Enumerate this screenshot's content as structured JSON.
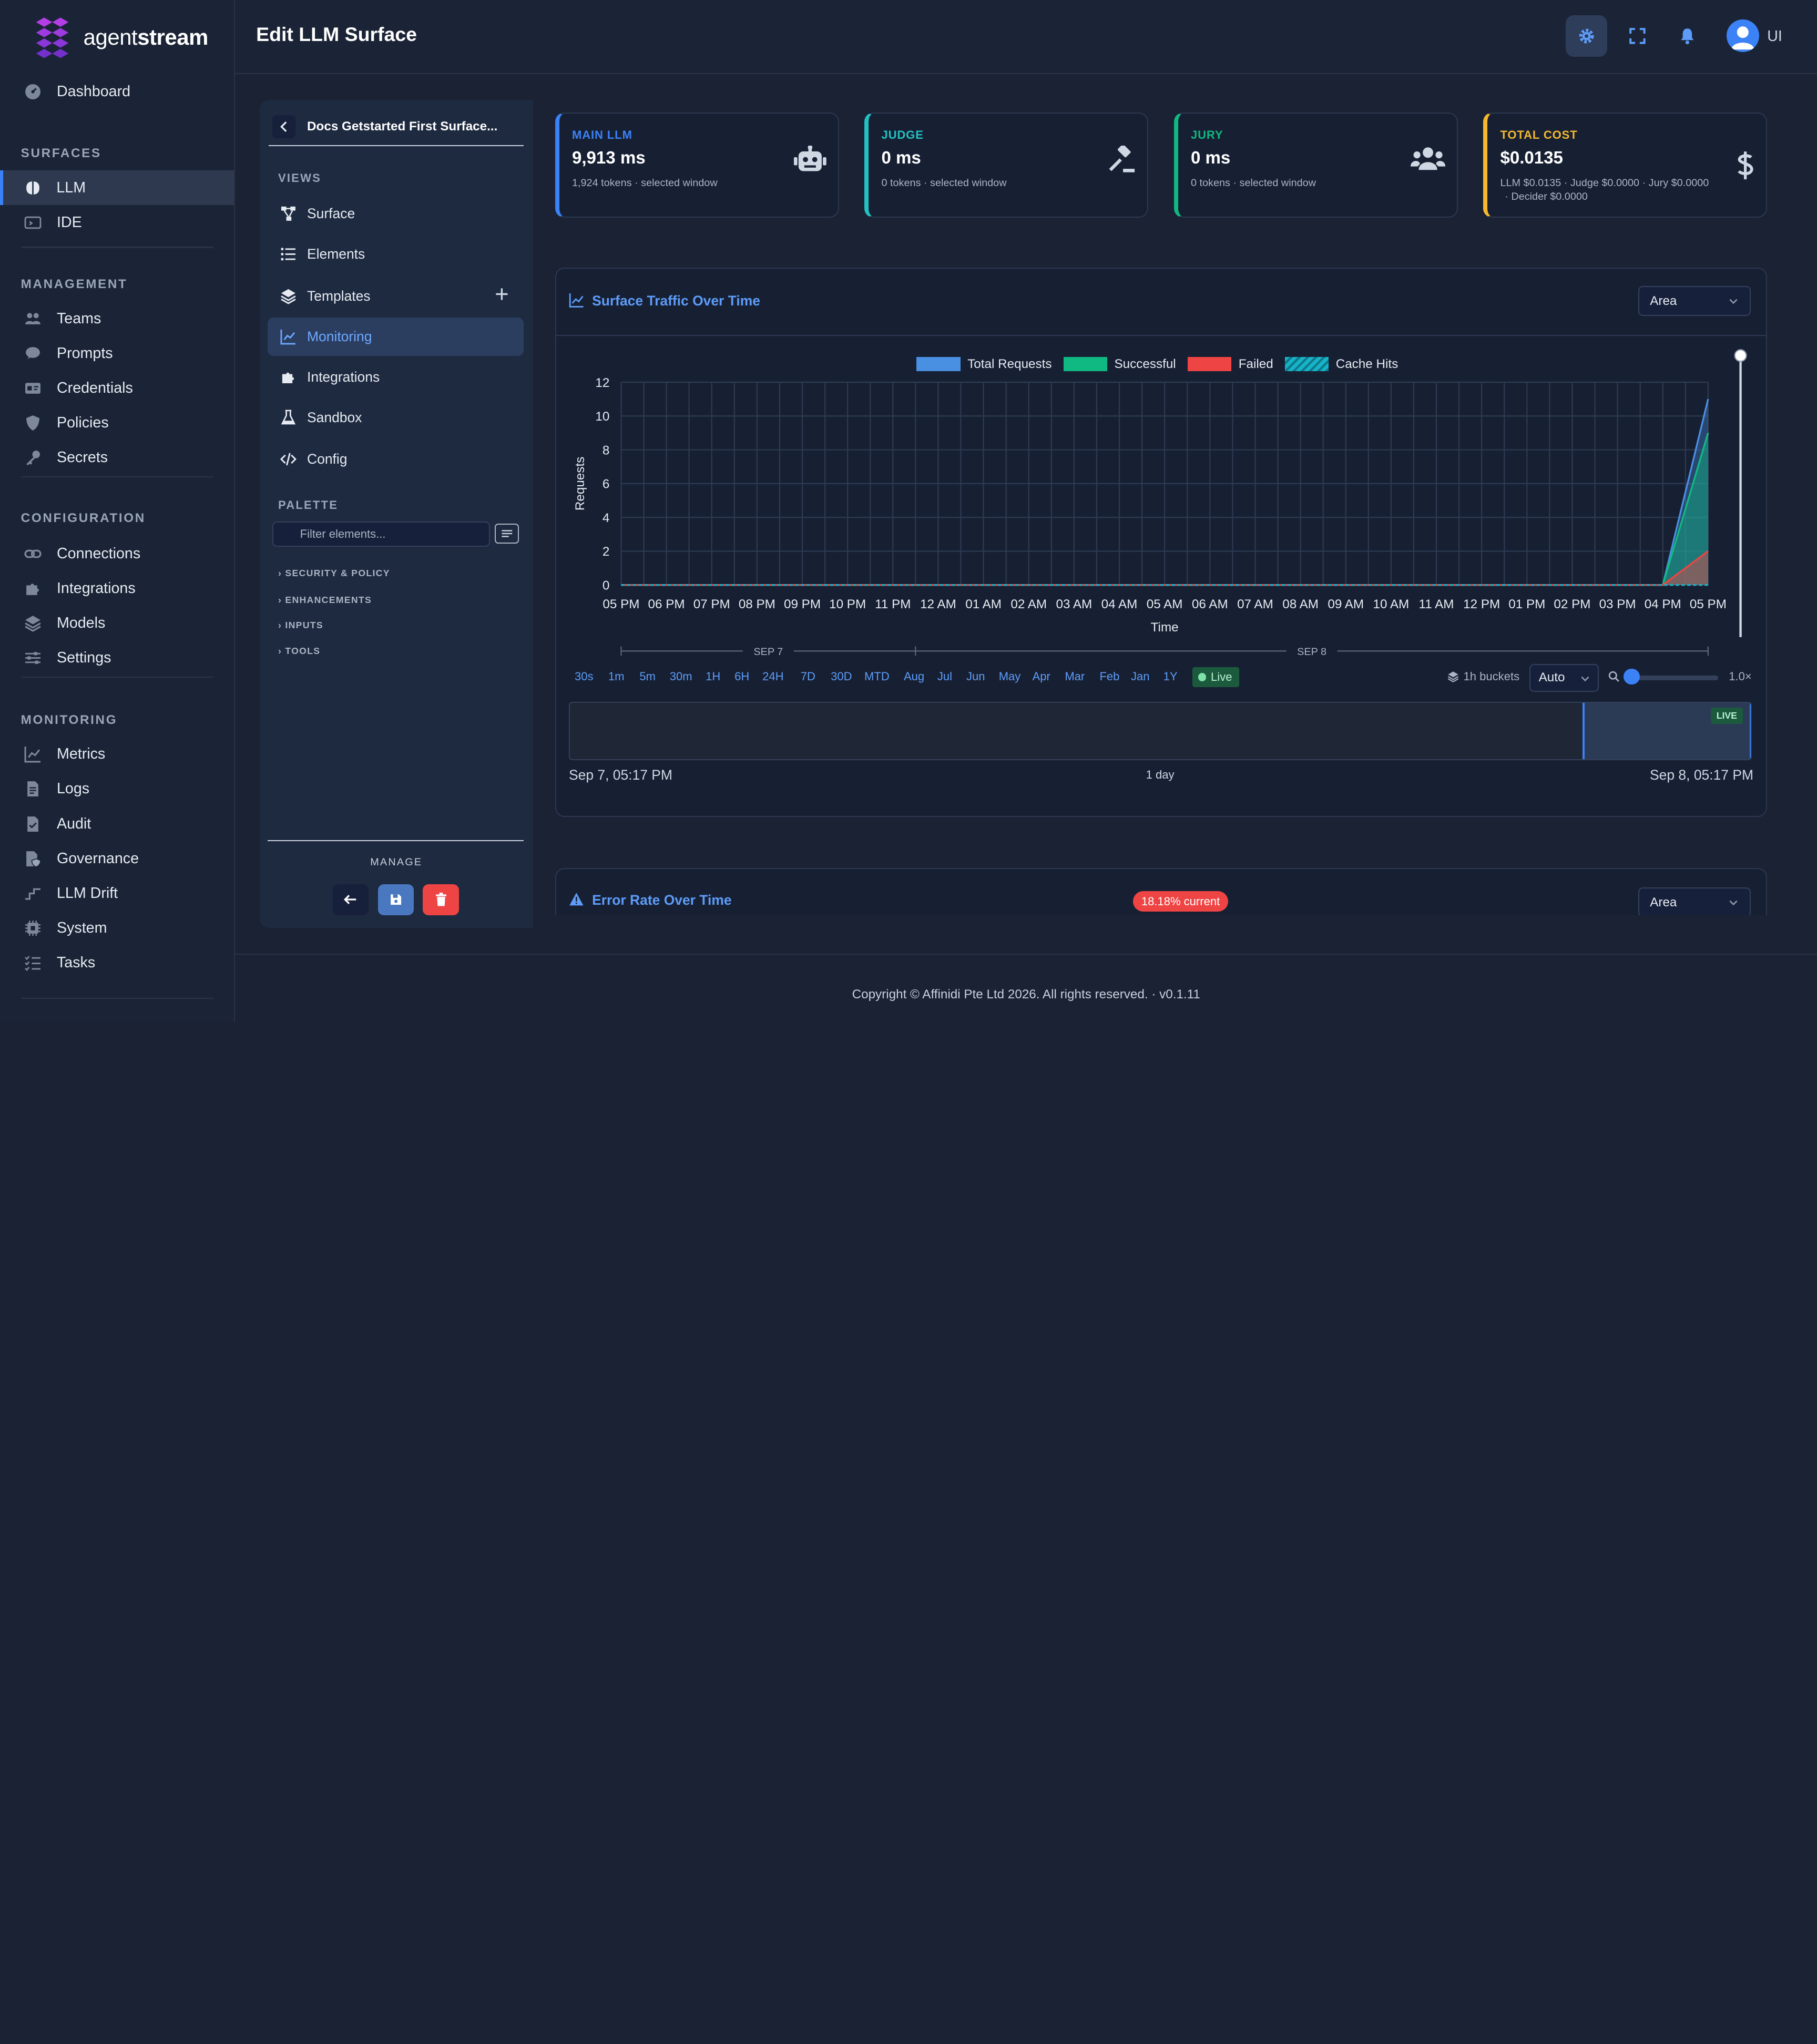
{
  "brand": {
    "name_light": "agent",
    "name_bold": "stream"
  },
  "header": {
    "title": "Edit LLM Surface",
    "user_initials": "UI"
  },
  "sidebar": {
    "dashboard": "Dashboard",
    "sections": {
      "surfaces": "SURFACES",
      "management": "MANAGEMENT",
      "configuration": "CONFIGURATION",
      "monitoring": "MONITORING"
    },
    "surfaces": [
      "LLM",
      "IDE"
    ],
    "management": [
      "Teams",
      "Prompts",
      "Credentials",
      "Policies",
      "Secrets"
    ],
    "configuration": [
      "Connections",
      "Integrations",
      "Models",
      "Settings"
    ],
    "monitoring": [
      "Metrics",
      "Logs",
      "Audit",
      "Governance",
      "LLM Drift",
      "System",
      "Tasks"
    ]
  },
  "surface_panel": {
    "name": "Docs Getstarted First Surface...",
    "views_label": "VIEWS",
    "views": [
      "Surface",
      "Elements",
      "Templates",
      "Monitoring",
      "Integrations",
      "Sandbox",
      "Config"
    ],
    "palette_label": "PALETTE",
    "filter_placeholder": "Filter elements...",
    "groups": [
      "SECURITY & POLICY",
      "ENHANCEMENTS",
      "INPUTS",
      "TOOLS"
    ],
    "manage_label": "MANAGE"
  },
  "cards": [
    {
      "title": "MAIN LLM",
      "value": "9,913 ms",
      "sub": "1,924 tokens · selected window",
      "color": "#3b82f6",
      "icon": "robot-icon"
    },
    {
      "title": "JUDGE",
      "value": "0 ms",
      "sub": "0 tokens · selected window",
      "color": "#22c1c3",
      "icon": "gavel-icon"
    },
    {
      "title": "JURY",
      "value": "0 ms",
      "sub": "0 tokens · selected window",
      "color": "#10b981",
      "icon": "users-icon"
    },
    {
      "title": "TOTAL COST",
      "value": "$0.0135",
      "sub": "LLM $0.0135 · Judge $0.0000 · Jury $0.0000",
      "sub2": "· Decider $0.0000",
      "color": "#f5b82e",
      "icon": "dollar-icon"
    }
  ],
  "traffic": {
    "title": "Surface Traffic Over Time",
    "chart_type_select": "Area",
    "ranges": [
      "30s",
      "1m",
      "5m",
      "30m",
      "1H",
      "6H",
      "24H",
      "7D",
      "30D",
      "MTD",
      "Aug",
      "Jul",
      "Jun",
      "May",
      "Apr",
      "Mar",
      "Feb",
      "Jan",
      "1Y"
    ],
    "live_label": "Live",
    "bucket_label": "1h buckets",
    "bucket_select": "Auto",
    "zoom_label": "1.0×",
    "timeline": {
      "start": "Sep 7, 05:17 PM",
      "span": "1 day",
      "end": "Sep 8, 05:17 PM",
      "live_tag": "LIVE"
    },
    "day_labels": [
      "SEP 7",
      "SEP 8"
    ]
  },
  "chart_data": {
    "type": "area",
    "xlabel": "Time",
    "ylabel": "Requests",
    "ylim": [
      0,
      12
    ],
    "yticks": [
      0,
      2,
      4,
      6,
      8,
      10,
      12
    ],
    "grid": true,
    "legend_placement": "top-center",
    "x": [
      "05 PM",
      "06 PM",
      "07 PM",
      "08 PM",
      "09 PM",
      "10 PM",
      "11 PM",
      "12 AM",
      "01 AM",
      "02 AM",
      "03 AM",
      "04 AM",
      "05 AM",
      "06 AM",
      "07 AM",
      "08 AM",
      "09 AM",
      "10 AM",
      "11 AM",
      "12 PM",
      "01 PM",
      "02 PM",
      "03 PM",
      "04 PM",
      "05 PM"
    ],
    "series": [
      {
        "name": "Total Requests",
        "color": "#4a90e2",
        "values": [
          0,
          0,
          0,
          0,
          0,
          0,
          0,
          0,
          0,
          0,
          0,
          0,
          0,
          0,
          0,
          0,
          0,
          0,
          0,
          0,
          0,
          0,
          0,
          0,
          11
        ]
      },
      {
        "name": "Successful",
        "color": "#10b981",
        "values": [
          0,
          0,
          0,
          0,
          0,
          0,
          0,
          0,
          0,
          0,
          0,
          0,
          0,
          0,
          0,
          0,
          0,
          0,
          0,
          0,
          0,
          0,
          0,
          0,
          9
        ]
      },
      {
        "name": "Failed",
        "color": "#ef4444",
        "values": [
          0,
          0,
          0,
          0,
          0,
          0,
          0,
          0,
          0,
          0,
          0,
          0,
          0,
          0,
          0,
          0,
          0,
          0,
          0,
          0,
          0,
          0,
          0,
          0,
          2
        ]
      },
      {
        "name": "Cache Hits",
        "color": "#17b3c9",
        "values": [
          0,
          0,
          0,
          0,
          0,
          0,
          0,
          0,
          0,
          0,
          0,
          0,
          0,
          0,
          0,
          0,
          0,
          0,
          0,
          0,
          0,
          0,
          0,
          0,
          0
        ]
      }
    ]
  },
  "error_rate": {
    "title": "Error Rate Over Time",
    "badge": "18.18% current",
    "chart_type_select": "Area"
  },
  "footer": {
    "text": "Copyright © Affinidi Pte Ltd 2026. All rights reserved. · v0.1.11"
  }
}
